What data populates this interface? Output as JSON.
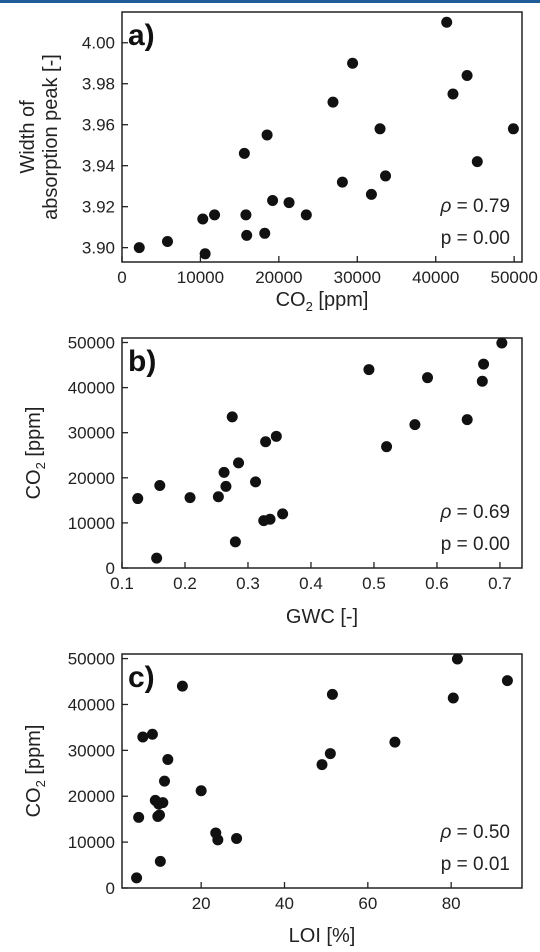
{
  "chart_data": [
    {
      "type": "scatter",
      "panel_label": "a)",
      "xlabel_pre": "CO",
      "xlabel_sub": "2",
      "xlabel_post": " [ppm]",
      "ylabel_lines": [
        "Width of",
        "absorption peak [-]"
      ],
      "xlim": [
        0,
        51000
      ],
      "ylim": [
        3.893,
        4.015
      ],
      "xticks": [
        0,
        10000,
        20000,
        30000,
        40000,
        50000
      ],
      "xtick_labels": [
        "0",
        "10000",
        "20000",
        "30000",
        "40000",
        "50000"
      ],
      "yticks": [
        3.9,
        3.92,
        3.94,
        3.96,
        3.98,
        4.0
      ],
      "ytick_labels": [
        "3.90",
        "3.92",
        "3.94",
        "3.96",
        "3.98",
        "4.00"
      ],
      "rho_prefix": "ρ",
      "rho_value": " = 0.79",
      "p_text": "p = 0.00",
      "points": [
        [
          2200,
          3.9
        ],
        [
          5800,
          3.903
        ],
        [
          10300,
          3.914
        ],
        [
          10600,
          3.897
        ],
        [
          11800,
          3.916
        ],
        [
          15600,
          3.946
        ],
        [
          15800,
          3.916
        ],
        [
          15900,
          3.906
        ],
        [
          18200,
          3.907
        ],
        [
          18500,
          3.955
        ],
        [
          19200,
          3.923
        ],
        [
          21300,
          3.922
        ],
        [
          23500,
          3.916
        ],
        [
          26900,
          3.971
        ],
        [
          28100,
          3.932
        ],
        [
          29400,
          3.99
        ],
        [
          31800,
          3.926
        ],
        [
          32900,
          3.958
        ],
        [
          33600,
          3.935
        ],
        [
          41400,
          4.01
        ],
        [
          42200,
          3.975
        ],
        [
          44000,
          3.984
        ],
        [
          45300,
          3.942
        ],
        [
          49900,
          3.958
        ]
      ]
    },
    {
      "type": "scatter",
      "panel_label": "b)",
      "xlabel_pre": "GWC [-]",
      "xlabel_sub": "",
      "xlabel_post": "",
      "ylabel_pre": "CO",
      "ylabel_sub": "2",
      "ylabel_post": " [ppm]",
      "xlim": [
        0.1,
        0.735
      ],
      "ylim": [
        0,
        51000
      ],
      "xticks": [
        0.1,
        0.2,
        0.3,
        0.4,
        0.5,
        0.6,
        0.7
      ],
      "xtick_labels": [
        "0.1",
        "0.2",
        "0.3",
        "0.4",
        "0.5",
        "0.6",
        "0.7"
      ],
      "yticks": [
        0,
        10000,
        20000,
        30000,
        40000,
        50000
      ],
      "ytick_labels": [
        "0",
        "10000",
        "20000",
        "30000",
        "40000",
        "50000"
      ],
      "rho_prefix": "ρ",
      "rho_value": " = 0.69",
      "p_text": "p = 0.00",
      "points": [
        [
          0.125,
          15400
        ],
        [
          0.155,
          2200
        ],
        [
          0.16,
          18300
        ],
        [
          0.208,
          15600
        ],
        [
          0.253,
          15800
        ],
        [
          0.262,
          21200
        ],
        [
          0.265,
          18100
        ],
        [
          0.275,
          33500
        ],
        [
          0.28,
          5800
        ],
        [
          0.285,
          23300
        ],
        [
          0.312,
          19100
        ],
        [
          0.325,
          10500
        ],
        [
          0.328,
          28000
        ],
        [
          0.335,
          10800
        ],
        [
          0.345,
          29200
        ],
        [
          0.355,
          12000
        ],
        [
          0.492,
          44000
        ],
        [
          0.52,
          26900
        ],
        [
          0.565,
          31800
        ],
        [
          0.585,
          42200
        ],
        [
          0.648,
          32900
        ],
        [
          0.672,
          41400
        ],
        [
          0.674,
          45200
        ],
        [
          0.703,
          49900
        ]
      ]
    },
    {
      "type": "scatter",
      "panel_label": "c)",
      "xlabel_pre": "LOI [%]",
      "xlabel_sub": "",
      "xlabel_post": "",
      "ylabel_pre": "CO",
      "ylabel_sub": "2",
      "ylabel_post": " [ppm]",
      "xlim": [
        1,
        97
      ],
      "ylim": [
        0,
        51000
      ],
      "xticks": [
        20,
        40,
        60,
        80
      ],
      "xtick_labels": [
        "20",
        "40",
        "60",
        "80"
      ],
      "yticks": [
        0,
        10000,
        20000,
        30000,
        40000,
        50000
      ],
      "ytick_labels": [
        "0",
        "10000",
        "20000",
        "30000",
        "40000",
        "50000"
      ],
      "rho_prefix": "ρ",
      "rho_value": " = 0.50",
      "p_text": "p = 0.01",
      "points": [
        [
          4.5,
          2200
        ],
        [
          5.0,
          15400
        ],
        [
          6.0,
          32900
        ],
        [
          8.3,
          33500
        ],
        [
          9.0,
          19100
        ],
        [
          9.6,
          15600
        ],
        [
          9.8,
          18300
        ],
        [
          10.0,
          15900
        ],
        [
          10.2,
          5800
        ],
        [
          10.8,
          18600
        ],
        [
          11.2,
          23300
        ],
        [
          12.0,
          28000
        ],
        [
          15.5,
          44000
        ],
        [
          20.0,
          21200
        ],
        [
          23.5,
          12000
        ],
        [
          24.0,
          10500
        ],
        [
          28.5,
          10800
        ],
        [
          49.0,
          26900
        ],
        [
          51.0,
          29300
        ],
        [
          51.5,
          42200
        ],
        [
          66.5,
          31800
        ],
        [
          80.5,
          41400
        ],
        [
          81.5,
          49900
        ],
        [
          93.5,
          45200
        ]
      ]
    }
  ]
}
